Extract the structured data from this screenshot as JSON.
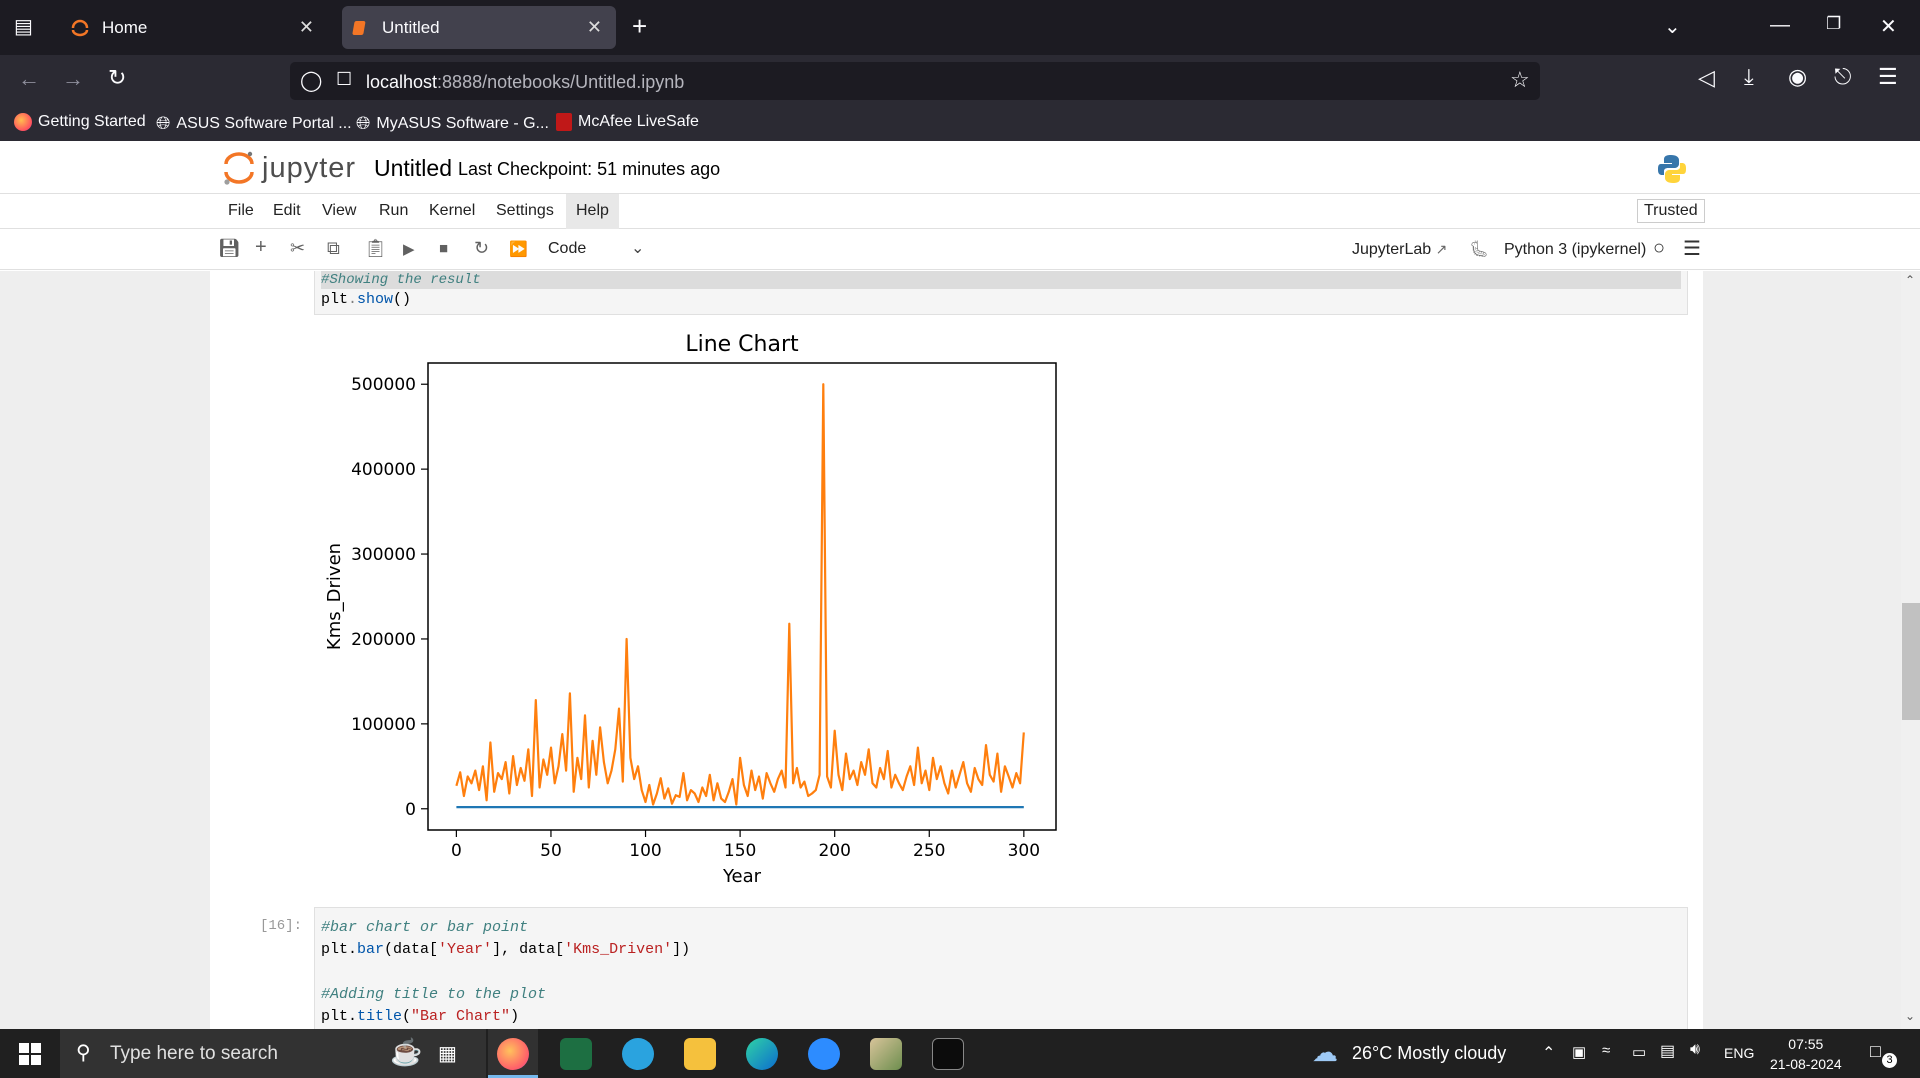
{
  "browser": {
    "tabs": [
      {
        "label": "Home",
        "active": false
      },
      {
        "label": "Untitled",
        "active": true
      }
    ],
    "url_host": "localhost",
    "url_rest": ":8888/notebooks/Untitled.ipynb",
    "bookmarks": [
      {
        "label": "Getting Started",
        "icon": "firefox-icon"
      },
      {
        "label": "ASUS Software Portal ...",
        "icon": "globe-icon"
      },
      {
        "label": "MyASUS Software - G...",
        "icon": "globe-icon"
      },
      {
        "label": "McAfee LiveSafe",
        "icon": "mcafee-icon"
      }
    ]
  },
  "jupyter": {
    "logo_text": "jupyter",
    "notebook_title": "Untitled",
    "checkpoint": "Last Checkpoint: 51 minutes ago",
    "menus": [
      "File",
      "Edit",
      "View",
      "Run",
      "Kernel",
      "Settings",
      "Help"
    ],
    "trusted": "Trusted",
    "cell_type": "Code",
    "jupyterlab_link": "JupyterLab",
    "kernel": "Python 3 (ipykernel)"
  },
  "cells": {
    "prev": {
      "line1": "#Showing the result",
      "line2_obj": "plt",
      "line2_fn": "show",
      "line2_tail": "()"
    },
    "cell16": {
      "prompt": "[16]:",
      "line1": "#bar chart or bar point",
      "line2_a": "plt.",
      "line2_fn": "bar",
      "line2_b": "(data[",
      "line2_s1": "'Year'",
      "line2_c": "], data[",
      "line2_s2": "'Kms_Driven'",
      "line2_d": "])",
      "line3": "#Adding title to the plot",
      "line4_a": "plt.",
      "line4_fn": "title",
      "line4_b": "(",
      "line4_s": "\"Bar Chart\"",
      "line4_c": ")"
    }
  },
  "chart_data": {
    "type": "line",
    "title": "Line Chart",
    "xlabel": "Year",
    "ylabel": "Kms_Driven",
    "xlim": [
      -15,
      317
    ],
    "ylim": [
      -25000,
      525000
    ],
    "xticks": [
      0,
      50,
      100,
      150,
      200,
      250,
      300
    ],
    "yticks": [
      0,
      100000,
      200000,
      300000,
      400000,
      500000
    ],
    "grid": false,
    "series": [
      {
        "color": "#1f77b4",
        "x": [
          0,
          300
        ],
        "values": [
          2014,
          2014
        ]
      },
      {
        "color": "#ff7f0e",
        "x": [
          0,
          2,
          4,
          6,
          8,
          10,
          12,
          14,
          16,
          18,
          20,
          22,
          24,
          26,
          28,
          30,
          32,
          34,
          36,
          38,
          40,
          42,
          44,
          46,
          48,
          50,
          52,
          54,
          56,
          58,
          60,
          62,
          64,
          66,
          68,
          70,
          72,
          74,
          76,
          78,
          80,
          82,
          84,
          86,
          88,
          90,
          92,
          94,
          96,
          98,
          100,
          102,
          104,
          106,
          108,
          110,
          112,
          114,
          116,
          118,
          120,
          122,
          124,
          126,
          128,
          130,
          132,
          134,
          136,
          138,
          140,
          142,
          144,
          146,
          148,
          150,
          152,
          154,
          156,
          158,
          160,
          162,
          164,
          166,
          168,
          170,
          172,
          174,
          176,
          178,
          180,
          182,
          184,
          186,
          188,
          190,
          192,
          194,
          196,
          198,
          200,
          202,
          204,
          206,
          208,
          210,
          212,
          214,
          216,
          218,
          220,
          222,
          224,
          226,
          228,
          230,
          232,
          234,
          236,
          238,
          240,
          242,
          244,
          246,
          248,
          250,
          252,
          254,
          256,
          258,
          260,
          262,
          264,
          266,
          268,
          270,
          272,
          274,
          276,
          278,
          280,
          282,
          284,
          286,
          288,
          290,
          292,
          294,
          296,
          298,
          300
        ],
        "values": [
          27000,
          43000,
          15000,
          38000,
          30000,
          45000,
          22000,
          50000,
          10000,
          78000,
          20000,
          42000,
          35000,
          55000,
          18000,
          62000,
          28000,
          48000,
          33000,
          70000,
          15000,
          128000,
          25000,
          58000,
          40000,
          72000,
          30000,
          50000,
          88000,
          45000,
          136000,
          20000,
          60000,
          35000,
          110000,
          25000,
          80000,
          40000,
          96000,
          55000,
          30000,
          45000,
          70000,
          118000,
          32000,
          200000,
          60000,
          35000,
          50000,
          22000,
          8000,
          28000,
          5000,
          18000,
          36000,
          12000,
          24000,
          6000,
          16000,
          14000,
          42000,
          10000,
          22000,
          18000,
          8000,
          25000,
          15000,
          40000,
          10000,
          30000,
          12000,
          8000,
          20000,
          35000,
          5000,
          60000,
          28000,
          15000,
          45000,
          22000,
          38000,
          12000,
          42000,
          30000,
          20000,
          35000,
          45000,
          25000,
          218000,
          30000,
          48000,
          25000,
          32000,
          15000,
          18000,
          22000,
          40000,
          500000,
          38000,
          25000,
          92000,
          40000,
          22000,
          65000,
          35000,
          45000,
          28000,
          55000,
          40000,
          70000,
          30000,
          25000,
          48000,
          35000,
          68000,
          25000,
          40000,
          30000,
          22000,
          38000,
          50000,
          28000,
          72000,
          30000,
          45000,
          22000,
          60000,
          35000,
          50000,
          30000,
          18000,
          45000,
          25000,
          40000,
          55000,
          30000,
          20000,
          48000,
          35000,
          28000,
          75000,
          40000,
          32000,
          65000,
          20000,
          50000,
          38000,
          25000,
          42000,
          30000,
          90000
        ]
      }
    ]
  },
  "taskbar": {
    "search_placeholder": "Type here to search",
    "weather": "26°C  Mostly cloudy",
    "lang": "ENG",
    "time": "07:55",
    "date": "21-08-2024",
    "notification_count": "3"
  }
}
